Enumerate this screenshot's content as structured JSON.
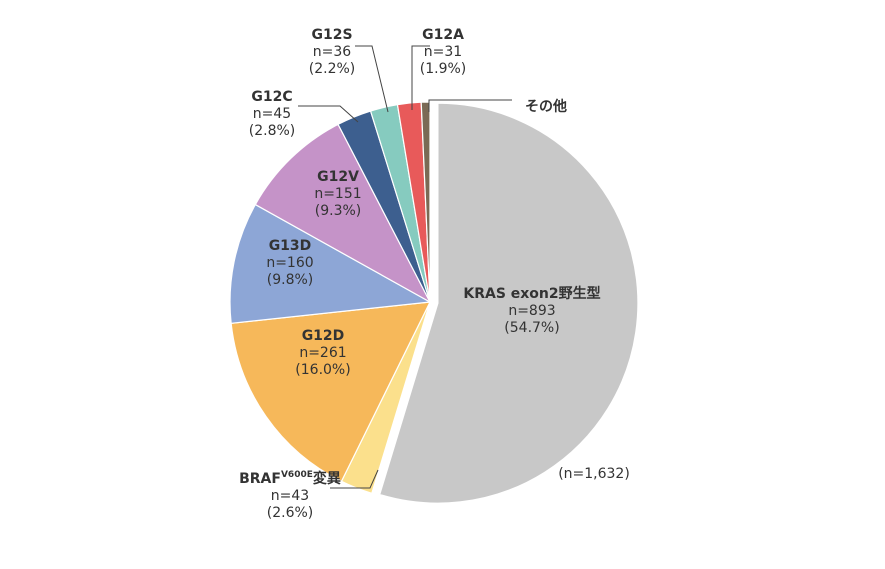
{
  "chart_data": {
    "type": "pie",
    "title": "",
    "total_label": "(n=1,632)",
    "slices": [
      {
        "name": "KRAS exon2野生型",
        "n": "n=893",
        "pct": "(54.7%)",
        "value": 54.7,
        "color": "#c8c8c8"
      },
      {
        "name": "BRAF",
        "name_sup": "V600E",
        "name_suffix": "変異",
        "n": "n=43",
        "pct": "(2.6%)",
        "value": 2.6,
        "color": "#fbe08c"
      },
      {
        "name": "G12D",
        "n": "n=261",
        "pct": "(16.0%)",
        "value": 16.0,
        "color": "#f6b85a"
      },
      {
        "name": "G13D",
        "n": "n=160",
        "pct": "(9.8%)",
        "value": 9.8,
        "color": "#8da6d6"
      },
      {
        "name": "G12V",
        "n": "n=151",
        "pct": "(9.3%)",
        "value": 9.3,
        "color": "#c593c8"
      },
      {
        "name": "G12C",
        "n": "n=45",
        "pct": "(2.8%)",
        "value": 2.8,
        "color": "#3d5f8f",
        "label_color": "#1f4e8c"
      },
      {
        "name": "G12S",
        "n": "n=36",
        "pct": "(2.2%)",
        "value": 2.2,
        "color": "#86cbbf"
      },
      {
        "name": "G12A",
        "n": "n=31",
        "pct": "(1.9%)",
        "value": 1.9,
        "color": "#e85a5a"
      },
      {
        "name": "その他",
        "n": "",
        "pct": "",
        "value": 0.7,
        "color": "#7a6a55"
      }
    ]
  }
}
